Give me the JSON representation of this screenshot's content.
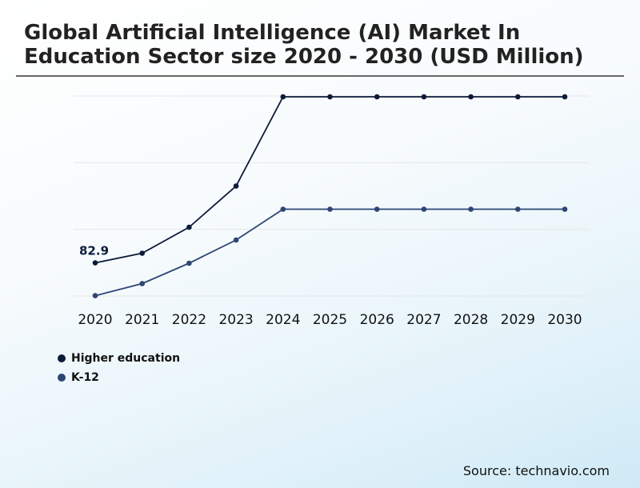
{
  "title": "Global Artificial Intelligence (AI) Market In Education Sector size 2020 - 2030 (USD Million)",
  "source": "Source: technavio.com",
  "colors": {
    "higher_education": "#0d1b3a",
    "k12": "#2e4674",
    "grid": "#e6e6e6"
  },
  "chart_data": {
    "type": "line",
    "title": "Global Artificial Intelligence (AI) Market In Education Sector size 2020 - 2030 (USD Million)",
    "x": [
      "2020",
      "2021",
      "2022",
      "2023",
      "2024",
      "2025",
      "2026",
      "2027",
      "2028",
      "2029",
      "2030"
    ],
    "series": [
      {
        "name": "Higher education",
        "color": "#0d1b3a",
        "values": [
          82.9,
          107,
          172,
          275,
          498,
          498,
          498,
          498,
          498,
          498,
          498
        ]
      },
      {
        "name": "K-12",
        "color": "#2e4674",
        "values": [
          0.9,
          31,
          82,
          140,
          217,
          217,
          217,
          217,
          217,
          217,
          217
        ]
      }
    ],
    "annotations": [
      {
        "series": 0,
        "index": 0,
        "label": "82.9"
      }
    ],
    "ylim": [
      0,
      500
    ],
    "grid": true,
    "legend_position": "bottom-left",
    "xlabel": "",
    "ylabel": ""
  }
}
